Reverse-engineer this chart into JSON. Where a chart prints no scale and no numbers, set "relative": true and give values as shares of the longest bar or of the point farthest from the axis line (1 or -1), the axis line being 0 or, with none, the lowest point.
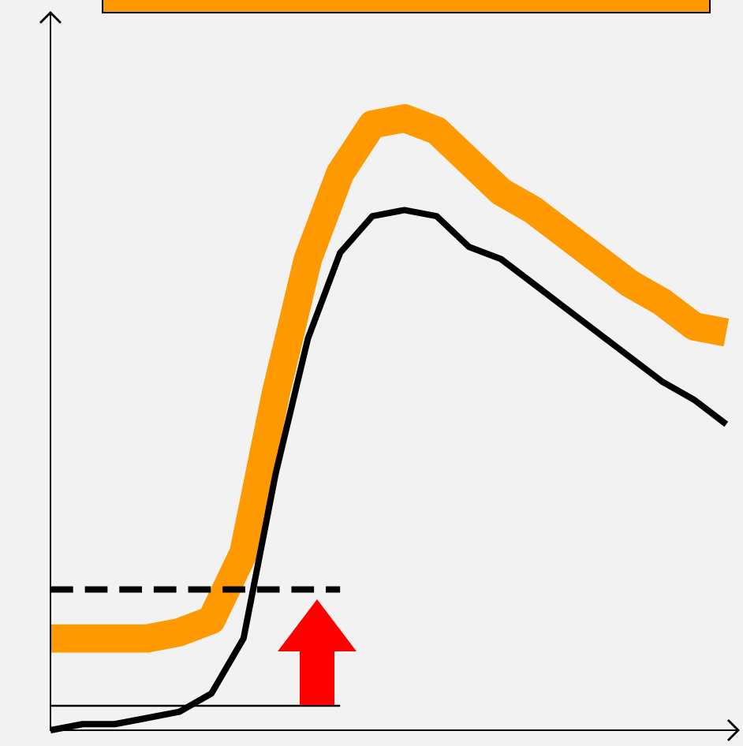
{
  "chart_data": {
    "type": "line",
    "relative": true,
    "categories": [
      null,
      null,
      null,
      null,
      null,
      null,
      null,
      null,
      null,
      null,
      null,
      null,
      null,
      null,
      null,
      null,
      null,
      null,
      null,
      null,
      null,
      null
    ],
    "series": [
      {
        "color": "#ff9900",
        "values": [
          0.15,
          0.15,
          0.15,
          0.15,
          0.16,
          0.18,
          0.29,
          0.55,
          0.77,
          0.91,
          0.99,
          1,
          0.98,
          0.93,
          0.88,
          0.85,
          0.81,
          0.77,
          0.73,
          0.7,
          0.66,
          0.65
        ]
      },
      {
        "color": "#000000",
        "values": [
          0,
          0.01,
          0.01,
          0.02,
          0.03,
          0.06,
          0.15,
          0.42,
          0.64,
          0.78,
          0.84,
          0.85,
          0.84,
          0.79,
          0.77,
          0.73,
          0.69,
          0.65,
          0.61,
          0.57,
          0.54,
          0.5
        ]
      },
      {
        "color": "#000000",
        "line_style": "dashed",
        "values": [
          0.23,
          0.23,
          0.23,
          0.23,
          0.23,
          0.23,
          0.23,
          0.23,
          0.23,
          0.23,
          null,
          null,
          null,
          null,
          null,
          null,
          null,
          null,
          null,
          null,
          null,
          null
        ]
      },
      {
        "color": "#000000",
        "values": [
          0.04,
          0.04,
          0.04,
          0.04,
          0.04,
          0.04,
          0.04,
          0.04,
          0.04,
          0.04,
          null,
          null,
          null,
          null,
          null,
          null,
          null,
          null,
          null,
          null,
          null,
          null
        ]
      }
    ]
  }
}
